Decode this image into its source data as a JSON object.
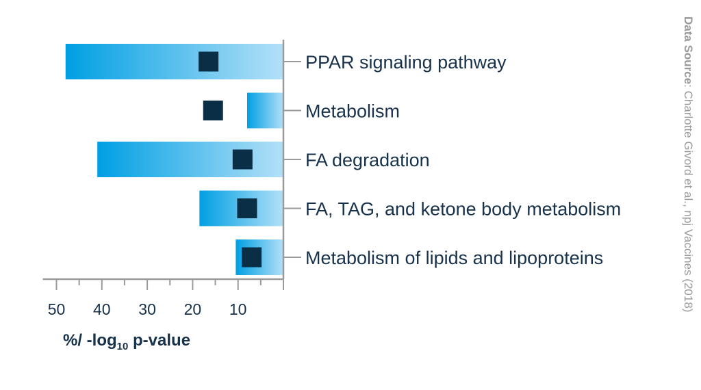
{
  "chart_data": {
    "type": "bar",
    "orientation": "horizontal",
    "x_direction": "reversed",
    "categories": [
      "PPAR signaling pathway",
      "Metabolism",
      "FA degradation",
      "FA, TAG, and ketone body metabolism",
      "Metabolism of lipids and lipoproteins"
    ],
    "series": [
      {
        "marker": "bar",
        "values": [
          48,
          8,
          41,
          18.5,
          10.5
        ]
      },
      {
        "marker": "square",
        "values": [
          16.5,
          15.5,
          9,
          8,
          7
        ]
      }
    ],
    "xlabel": {
      "prefix": "%/ -log",
      "subscript": "10",
      "suffix": " p-value"
    },
    "xticks": [
      50,
      40,
      30,
      20,
      10
    ],
    "xlim": [
      0,
      53
    ],
    "grid": false,
    "colors": {
      "bar_gradient_start": "#009fe3",
      "bar_gradient_end": "#b3e0f7",
      "marker": "#0a2e45",
      "axis": "#9a9a9a",
      "text": "#17324a"
    }
  },
  "source": {
    "label": "Data Source",
    "text": ": Charlotte Givord et al., npj Vaccines (2018)"
  }
}
